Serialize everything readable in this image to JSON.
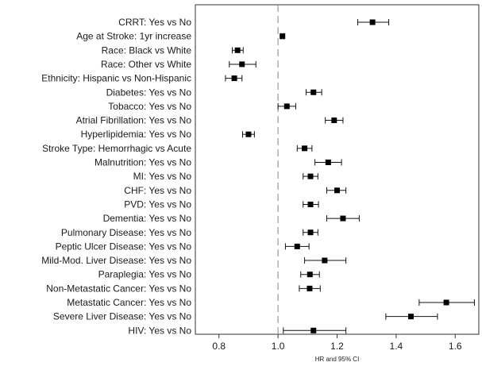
{
  "chart_data": {
    "type": "forest",
    "xlabel": "HR and 95% CI",
    "xlim": [
      0.72,
      1.68
    ],
    "xticks": [
      0.8,
      1.0,
      1.2,
      1.4,
      1.6
    ],
    "xtick_labels": [
      "0.8",
      "1.0",
      "1.2",
      "1.4",
      "1.6"
    ],
    "reference_line": 1.0,
    "grid": false,
    "rows": [
      {
        "label": "CRRT: Yes vs No",
        "hr": 1.32,
        "lo": 1.27,
        "hi": 1.375
      },
      {
        "label": "Age at Stroke: 1yr increase",
        "hr": 1.015,
        "lo": 1.01,
        "hi": 1.02
      },
      {
        "label": "Race: Black vs White",
        "hr": 0.863,
        "lo": 0.845,
        "hi": 0.882
      },
      {
        "label": "Race: Other vs White",
        "hr": 0.878,
        "lo": 0.835,
        "hi": 0.925
      },
      {
        "label": "Ethnicity: Hispanic vs Non-Hispanic",
        "hr": 0.852,
        "lo": 0.822,
        "hi": 0.878
      },
      {
        "label": "Diabetes: Yes vs No",
        "hr": 1.12,
        "lo": 1.095,
        "hi": 1.148
      },
      {
        "label": "Tobacco: Yes vs No",
        "hr": 1.03,
        "lo": 1.0,
        "hi": 1.06
      },
      {
        "label": "Atrial Fibrillation: Yes vs No",
        "hr": 1.19,
        "lo": 1.16,
        "hi": 1.22
      },
      {
        "label": "Hyperlipidemia: Yes vs No",
        "hr": 0.9,
        "lo": 0.88,
        "hi": 0.92
      },
      {
        "label": "Stroke Type: Hemorrhagic vs Acute",
        "hr": 1.09,
        "lo": 1.065,
        "hi": 1.115
      },
      {
        "label": "Malnutrition: Yes vs No",
        "hr": 1.17,
        "lo": 1.125,
        "hi": 1.215
      },
      {
        "label": "MI: Yes vs No",
        "hr": 1.11,
        "lo": 1.085,
        "hi": 1.135
      },
      {
        "label": "CHF: Yes vs No",
        "hr": 1.2,
        "lo": 1.165,
        "hi": 1.23
      },
      {
        "label": "PVD: Yes vs No",
        "hr": 1.11,
        "lo": 1.085,
        "hi": 1.137
      },
      {
        "label": "Dementia: Yes vs No",
        "hr": 1.22,
        "lo": 1.165,
        "hi": 1.275
      },
      {
        "label": "Pulmonary Disease: Yes vs No",
        "hr": 1.11,
        "lo": 1.085,
        "hi": 1.135
      },
      {
        "label": "Peptic Ulcer Disease: Yes vs No",
        "hr": 1.065,
        "lo": 1.025,
        "hi": 1.105
      },
      {
        "label": "Mild-Mod. Liver Disease: Yes vs No",
        "hr": 1.158,
        "lo": 1.09,
        "hi": 1.23
      },
      {
        "label": "Paraplegia: Yes vs No",
        "hr": 1.108,
        "lo": 1.077,
        "hi": 1.14
      },
      {
        "label": "Non-Metastatic Cancer: Yes vs No",
        "hr": 1.107,
        "lo": 1.072,
        "hi": 1.143
      },
      {
        "label": "Metastatic Cancer: Yes vs No",
        "hr": 1.57,
        "lo": 1.478,
        "hi": 1.665
      },
      {
        "label": "Severe Liver Disease: Yes vs No",
        "hr": 1.45,
        "lo": 1.365,
        "hi": 1.54
      },
      {
        "label": "HIV: Yes vs No",
        "hr": 1.12,
        "lo": 1.018,
        "hi": 1.23
      }
    ]
  }
}
